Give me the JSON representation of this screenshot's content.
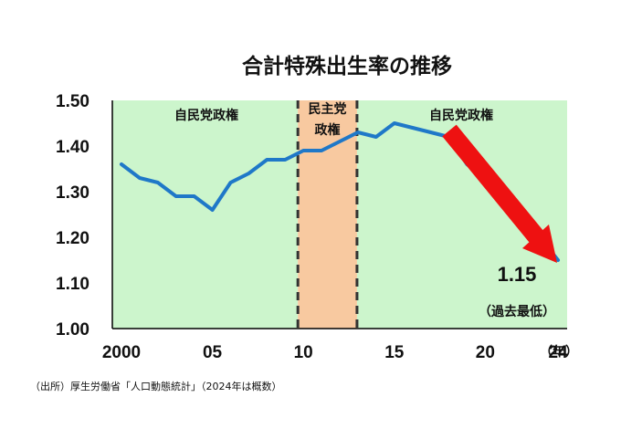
{
  "chart_data": {
    "type": "line",
    "title": "合計特殊出生率の推移",
    "x": [
      2000,
      2001,
      2002,
      2003,
      2004,
      2005,
      2006,
      2007,
      2008,
      2009,
      2010,
      2011,
      2012,
      2013,
      2014,
      2015,
      2016,
      2017,
      2018,
      2019,
      2020,
      2021,
      2022,
      2023,
      2024
    ],
    "series": [
      {
        "values": [
          1.36,
          1.33,
          1.32,
          1.29,
          1.29,
          1.26,
          1.32,
          1.34,
          1.37,
          1.37,
          1.39,
          1.39,
          1.41,
          1.43,
          1.42,
          1.45,
          1.44,
          1.43,
          1.42,
          1.36,
          1.33,
          1.3,
          1.26,
          1.2,
          1.15
        ]
      }
    ],
    "ylim": [
      1.0,
      1.5
    ],
    "xlim": [
      1999.5,
      2024.5
    ],
    "y_ticks": [
      "1.00",
      "1.10",
      "1.20",
      "1.30",
      "1.40",
      "1.50"
    ],
    "y_tick_values": [
      1.0,
      1.1,
      1.2,
      1.3,
      1.4,
      1.5
    ],
    "x_ticks": [
      "2000",
      "05",
      "10",
      "15",
      "20",
      "24"
    ],
    "x_tick_values": [
      2000,
      2005,
      2010,
      2015,
      2020,
      2024
    ],
    "x_unit": "（年）",
    "periods": [
      {
        "label": "自民党政権",
        "start": 1999.5,
        "end": 2009.7,
        "color": "#ccf5cc"
      },
      {
        "label_lines": [
          "民主党",
          "政権"
        ],
        "start": 2009.7,
        "end": 2012.95,
        "color": "#f8c9a0"
      },
      {
        "label": "自民党政権",
        "start": 2012.95,
        "end": 2024.5,
        "color": "#ccf5cc"
      }
    ],
    "annotation": {
      "value": "1.15",
      "note": "（過去最低）"
    },
    "line_color": "#1f78c8",
    "arrow_color": "#ee1111",
    "grid": false
  },
  "source": "（出所）厚生労働省「人口動態統計」（2024年は概数）"
}
